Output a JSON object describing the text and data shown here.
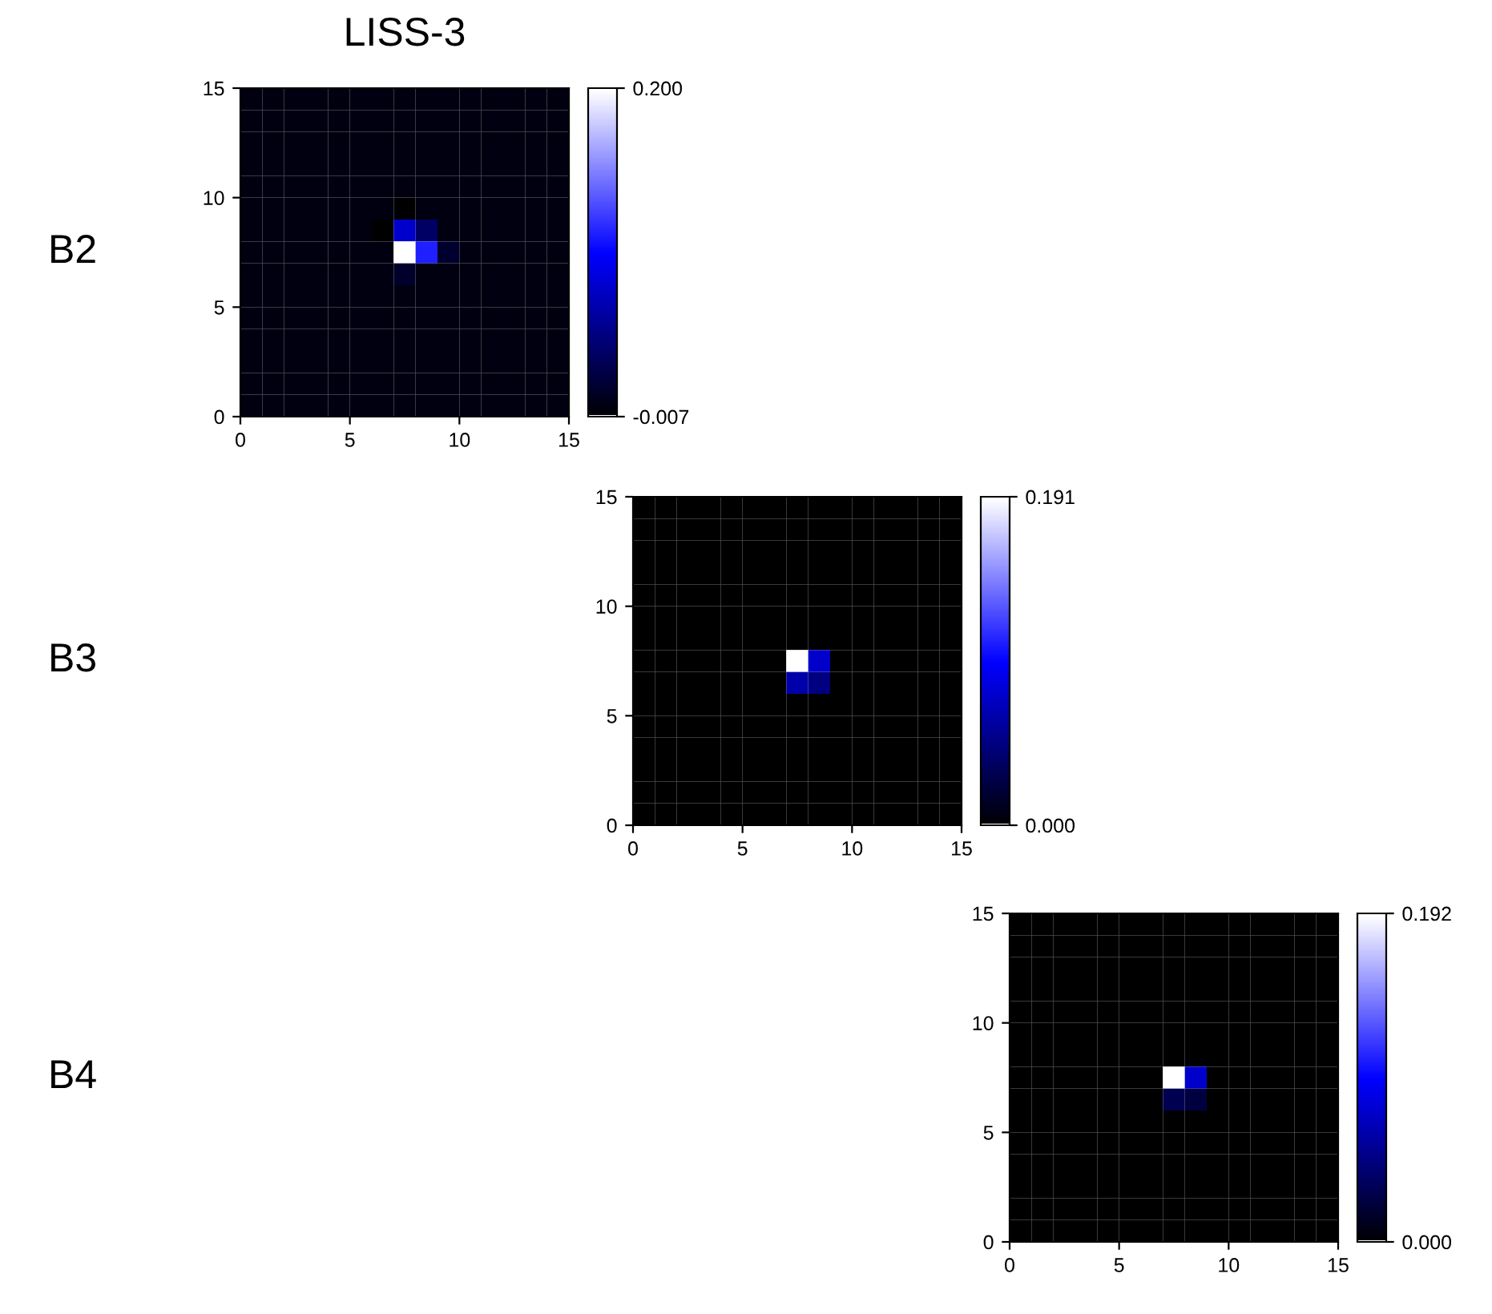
{
  "chart_data": [
    {
      "type": "heatmap",
      "title": "LISS-3",
      "ylabel": "B2",
      "xlim": [
        0,
        15
      ],
      "ylim": [
        0,
        15
      ],
      "xticks": [
        0,
        5,
        10,
        15
      ],
      "yticks": [
        0,
        5,
        10,
        15
      ],
      "clim": [
        -0.007,
        0.2
      ],
      "cticks": [
        {
          "value": -0.007,
          "label": "-0.007"
        },
        {
          "value": 0.2,
          "label": "0.200"
        }
      ],
      "grid": false,
      "cells": [
        [
          0,
          0,
          0,
          0,
          0,
          0,
          0,
          0,
          0,
          0,
          0,
          0,
          0,
          0,
          0
        ],
        [
          0,
          0,
          0,
          0,
          0,
          0,
          0,
          0,
          0,
          0,
          0,
          0,
          0,
          0,
          0
        ],
        [
          0,
          0,
          0,
          0,
          0,
          0,
          0,
          0,
          0,
          0,
          0,
          0,
          0,
          0,
          0
        ],
        [
          0,
          0,
          0,
          0,
          0,
          0,
          0,
          0,
          0,
          0,
          0,
          0,
          0,
          0,
          0
        ],
        [
          0,
          0,
          0,
          0,
          0,
          0,
          0,
          0,
          0,
          0,
          0,
          0,
          0,
          0,
          0
        ],
        [
          0,
          0,
          0,
          0,
          0,
          0,
          0,
          -0.007,
          0,
          0,
          0,
          0,
          0,
          0,
          0
        ],
        [
          0,
          0,
          0,
          0,
          0,
          0,
          -0.007,
          0.076,
          0.034,
          0,
          0,
          0,
          0,
          0,
          0
        ],
        [
          0,
          0,
          0,
          0,
          0,
          0,
          0,
          0.2,
          0.109,
          0.012,
          0,
          0,
          0,
          0,
          0
        ],
        [
          0,
          0,
          0,
          0,
          0,
          0,
          0,
          0.01,
          0,
          0,
          0,
          0,
          0,
          0,
          0
        ],
        [
          0,
          0,
          0,
          0,
          0,
          0,
          0,
          0,
          0,
          0,
          0,
          0,
          0,
          0,
          0
        ],
        [
          0,
          0,
          0,
          0,
          0,
          0,
          0,
          0,
          0,
          0,
          0,
          0,
          0,
          0,
          0
        ],
        [
          0,
          0,
          0,
          0,
          0,
          0,
          0,
          0,
          0,
          0,
          0,
          0,
          0,
          0,
          0
        ],
        [
          0,
          0,
          0,
          0,
          0,
          0,
          0,
          0,
          0,
          0,
          0,
          0,
          0,
          0,
          0
        ],
        [
          0,
          0,
          0,
          0,
          0,
          0,
          0,
          0,
          0,
          0,
          0,
          0,
          0,
          0,
          0
        ],
        [
          0,
          0,
          0,
          0,
          0,
          0,
          0,
          0,
          0,
          0,
          0,
          0,
          0,
          0,
          0
        ]
      ]
    },
    {
      "type": "heatmap",
      "ylabel": "B3",
      "xlim": [
        0,
        15
      ],
      "ylim": [
        0,
        15
      ],
      "xticks": [
        0,
        5,
        10,
        15
      ],
      "yticks": [
        0,
        5,
        10,
        15
      ],
      "clim": [
        0,
        0.191
      ],
      "cticks": [
        {
          "value": 0,
          "label": "0.000"
        },
        {
          "value": 0.191,
          "label": "0.191"
        }
      ],
      "grid": false,
      "cells": [
        [
          0,
          0,
          0,
          0,
          0,
          0,
          0,
          0,
          0,
          0,
          0,
          0,
          0,
          0,
          0
        ],
        [
          0,
          0,
          0,
          0,
          0,
          0,
          0,
          0,
          0,
          0,
          0,
          0,
          0,
          0,
          0
        ],
        [
          0,
          0,
          0,
          0,
          0,
          0,
          0,
          0,
          0,
          0,
          0,
          0,
          0,
          0,
          0
        ],
        [
          0,
          0,
          0,
          0,
          0,
          0,
          0,
          0,
          0,
          0,
          0,
          0,
          0,
          0,
          0
        ],
        [
          0,
          0,
          0,
          0,
          0,
          0,
          0,
          0,
          0,
          0,
          0,
          0,
          0,
          0,
          0
        ],
        [
          0,
          0,
          0,
          0,
          0,
          0,
          0,
          0,
          0,
          0,
          0,
          0,
          0,
          0,
          0
        ],
        [
          0,
          0,
          0,
          0,
          0,
          0,
          0,
          0,
          0,
          0,
          0,
          0,
          0,
          0,
          0
        ],
        [
          0,
          0,
          0,
          0,
          0,
          0,
          0,
          0.191,
          0.076,
          0,
          0,
          0,
          0,
          0,
          0
        ],
        [
          0,
          0,
          0,
          0,
          0,
          0,
          0,
          0.064,
          0.048,
          0,
          0,
          0,
          0,
          0,
          0
        ],
        [
          0,
          0,
          0,
          0,
          0,
          0,
          0,
          0,
          0,
          0,
          0,
          0,
          0,
          0,
          0
        ],
        [
          0,
          0,
          0,
          0,
          0,
          0,
          0,
          0,
          0,
          0,
          0,
          0,
          0,
          0,
          0
        ],
        [
          0,
          0,
          0,
          0,
          0,
          0,
          0,
          0,
          0,
          0,
          0,
          0,
          0,
          0,
          0
        ],
        [
          0,
          0,
          0,
          0,
          0,
          0,
          0,
          0,
          0,
          0,
          0,
          0,
          0,
          0,
          0
        ],
        [
          0,
          0,
          0,
          0,
          0,
          0,
          0,
          0,
          0,
          0,
          0,
          0,
          0,
          0,
          0
        ],
        [
          0,
          0,
          0,
          0,
          0,
          0,
          0,
          0,
          0,
          0,
          0,
          0,
          0,
          0,
          0
        ]
      ]
    },
    {
      "type": "heatmap",
      "ylabel": "B4",
      "xlim": [
        0,
        15
      ],
      "ylim": [
        0,
        15
      ],
      "xticks": [
        0,
        5,
        10,
        15
      ],
      "yticks": [
        0,
        5,
        10,
        15
      ],
      "clim": [
        0,
        0.192
      ],
      "cticks": [
        {
          "value": 0,
          "label": "0.000"
        },
        {
          "value": 0.192,
          "label": "0.192"
        }
      ],
      "grid": false,
      "cells": [
        [
          0,
          0,
          0,
          0,
          0,
          0,
          0,
          0,
          0,
          0,
          0,
          0,
          0,
          0,
          0
        ],
        [
          0,
          0,
          0,
          0,
          0,
          0,
          0,
          0,
          0,
          0,
          0,
          0,
          0,
          0,
          0
        ],
        [
          0,
          0,
          0,
          0,
          0,
          0,
          0,
          0,
          0,
          0,
          0,
          0,
          0,
          0,
          0
        ],
        [
          0,
          0,
          0,
          0,
          0,
          0,
          0,
          0,
          0,
          0,
          0,
          0,
          0,
          0,
          0
        ],
        [
          0,
          0,
          0,
          0,
          0,
          0,
          0,
          0,
          0,
          0,
          0,
          0,
          0,
          0,
          0
        ],
        [
          0,
          0,
          0,
          0,
          0,
          0,
          0,
          0,
          0,
          0,
          0,
          0,
          0,
          0,
          0
        ],
        [
          0,
          0,
          0,
          0,
          0,
          0,
          0,
          0,
          0,
          0,
          0,
          0,
          0,
          0,
          0
        ],
        [
          0,
          0,
          0,
          0,
          0,
          0,
          0,
          0.192,
          0.077,
          0,
          0,
          0,
          0,
          0,
          0
        ],
        [
          0,
          0,
          0,
          0,
          0,
          0,
          0,
          0.03,
          0.024,
          0,
          0,
          0,
          0,
          0,
          0
        ],
        [
          0,
          0,
          0,
          0,
          0,
          0,
          0,
          0,
          0,
          0,
          0,
          0,
          0,
          0,
          0
        ],
        [
          0,
          0,
          0,
          0,
          0,
          0,
          0,
          0,
          0,
          0,
          0,
          0,
          0,
          0,
          0
        ],
        [
          0,
          0,
          0,
          0,
          0,
          0,
          0,
          0,
          0,
          0,
          0,
          0,
          0,
          0,
          0
        ],
        [
          0,
          0,
          0,
          0,
          0,
          0,
          0,
          0,
          0,
          0,
          0,
          0,
          0,
          0,
          0
        ],
        [
          0,
          0,
          0,
          0,
          0,
          0,
          0,
          0,
          0,
          0,
          0,
          0,
          0,
          0,
          0
        ],
        [
          0,
          0,
          0,
          0,
          0,
          0,
          0,
          0,
          0,
          0,
          0,
          0,
          0,
          0,
          0
        ]
      ]
    }
  ]
}
